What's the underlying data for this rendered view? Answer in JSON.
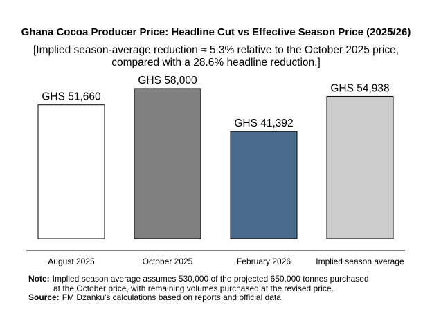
{
  "chart_data": {
    "type": "bar",
    "title": "Ghana Cocoa Producer Price: Headline Cut vs Effective Season Price (2025/26)",
    "subtitle_lines": [
      "[Implied season-average reduction ≈ 5.3% relative to the October 2025 price,",
      "compared with a 28.6% headline reduction.]"
    ],
    "categories": [
      "August 2025",
      "October 2025",
      "February 2026",
      "Implied season average"
    ],
    "values": [
      51660,
      58000,
      41392,
      54938
    ],
    "data_labels": [
      "GHS 51,660",
      "GHS 58,000",
      "GHS 41,392",
      "GHS 54,938"
    ],
    "bar_colors": [
      "#ffffff",
      "#808080",
      "#4a6b8c",
      "#cccccc"
    ],
    "ylim": [
      0,
      58000
    ],
    "xlabel": "",
    "ylabel": "",
    "grid": false
  },
  "notes": {
    "note_label": "Note:",
    "note_line1": "Implied season average assumes 530,000 of the projected 650,000 tonnes purchased",
    "note_line2": "at the October price, with remaining volumes purchased at the revised price.",
    "source_label": "Source:",
    "source_text": "FM Dzanku's calculations based on reports and official data."
  }
}
